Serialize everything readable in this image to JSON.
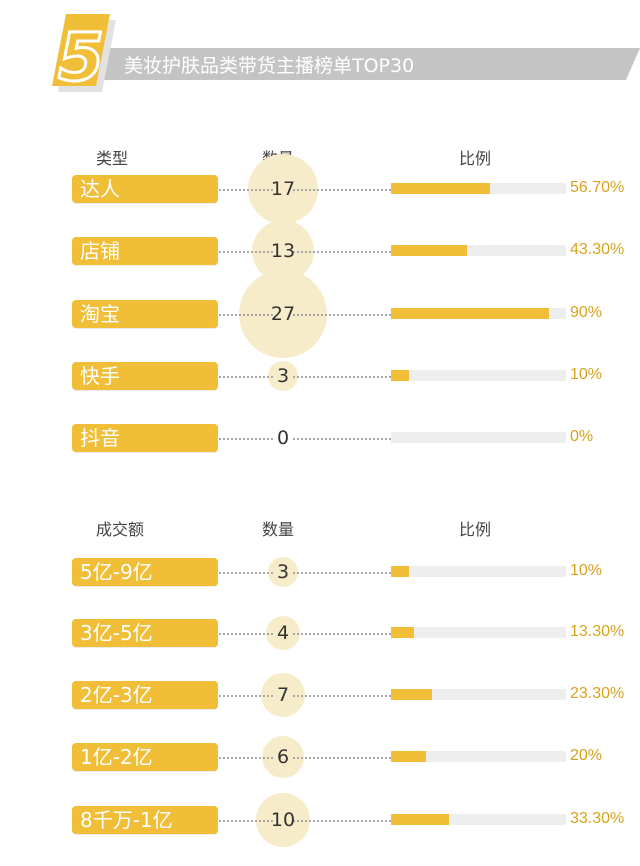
{
  "header": {
    "badge_number": "5",
    "title": "美妆护肤品类带货主播榜单TOP30",
    "colors": {
      "badge": "#f1be38",
      "bar": "#c4c4c4",
      "text": "#ffffff"
    }
  },
  "chart_data": [
    {
      "type": "bar",
      "col_headers": {
        "category": "类型",
        "count": "数量",
        "ratio": "比例"
      },
      "rows": [
        {
          "label": "达人",
          "count": 17,
          "percent": 56.7,
          "percent_label": "56.70%"
        },
        {
          "label": "店铺",
          "count": 13,
          "percent": 43.3,
          "percent_label": "43.30%"
        },
        {
          "label": "淘宝",
          "count": 27,
          "percent": 90,
          "percent_label": "90%"
        },
        {
          "label": "快手",
          "count": 3,
          "percent": 10,
          "percent_label": "10%"
        },
        {
          "label": "抖音",
          "count": 0,
          "percent": 0,
          "percent_label": "0%"
        }
      ]
    },
    {
      "type": "bar",
      "col_headers": {
        "category": "成交额",
        "count": "数量",
        "ratio": "比例"
      },
      "rows": [
        {
          "label": "5亿-9亿",
          "count": 3,
          "percent": 10,
          "percent_label": "10%"
        },
        {
          "label": "3亿-5亿",
          "count": 4,
          "percent": 13.3,
          "percent_label": "13.30%"
        },
        {
          "label": "2亿-3亿",
          "count": 7,
          "percent": 23.3,
          "percent_label": "23.30%"
        },
        {
          "label": "1亿-2亿",
          "count": 6,
          "percent": 20,
          "percent_label": "20%"
        },
        {
          "label": "8千万-1亿",
          "count": 10,
          "percent": 33.3,
          "percent_label": "33.30%"
        }
      ]
    }
  ],
  "colors": {
    "accent": "#f1be38",
    "circle": "#f7ecca",
    "track": "#eeeeee",
    "percent_text": "#d9a21c"
  }
}
